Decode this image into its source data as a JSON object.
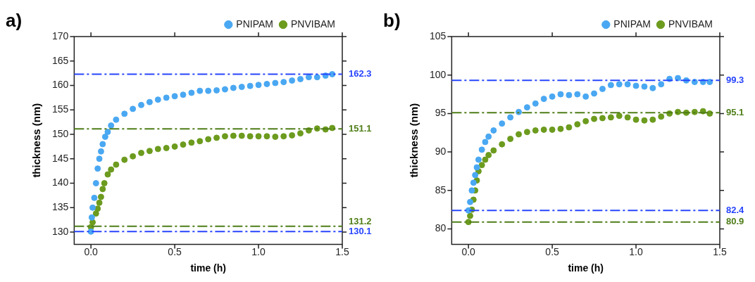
{
  "chart_data": [
    {
      "type": "scatter",
      "xlabel": "time (h)",
      "ylabel": "thickness (nm)",
      "annotations": [
        "a)"
      ],
      "xlim": [
        -0.1,
        1.5
      ],
      "ylim": [
        127.5,
        170
      ],
      "xticks": [
        {
          "value": 0,
          "label": "0.0"
        },
        {
          "value": 0.5,
          "label": "0.5"
        },
        {
          "value": 1,
          "label": "1.0"
        },
        {
          "value": 1.5,
          "label": "1.5"
        }
      ],
      "yticks": [
        130,
        135,
        140,
        145,
        150,
        155,
        160,
        165,
        170
      ],
      "grid": false,
      "legend": "top right",
      "marker": "circle",
      "series": [
        {
          "name": "PNIPAM",
          "color": "#4aa8f2",
          "x": [
            0,
            0.005,
            0.01,
            0.02,
            0.03,
            0.04,
            0.05,
            0.06,
            0.07,
            0.085,
            0.1,
            0.12,
            0.15,
            0.2,
            0.25,
            0.3,
            0.35,
            0.4,
            0.45,
            0.5,
            0.55,
            0.6,
            0.65,
            0.7,
            0.75,
            0.8,
            0.85,
            0.9,
            0.95,
            1.0,
            1.05,
            1.1,
            1.15,
            1.2,
            1.25,
            1.3,
            1.35,
            1.4,
            1.44
          ],
          "values": [
            130.1,
            133,
            135,
            137,
            140,
            143,
            145,
            146.5,
            148,
            149.5,
            150.5,
            151.8,
            153,
            154.2,
            155.2,
            156,
            156.6,
            157.1,
            157.5,
            157.8,
            158.1,
            158.5,
            158.9,
            158.9,
            159,
            159.2,
            159.5,
            159.7,
            159.9,
            160.1,
            160.3,
            160.5,
            160.7,
            161,
            161.3,
            161.7,
            161.7,
            162,
            162.3
          ]
        },
        {
          "name": "PNVIBAM",
          "color": "#6c9b1e",
          "x": [
            0,
            0.01,
            0.02,
            0.03,
            0.04,
            0.05,
            0.06,
            0.07,
            0.08,
            0.1,
            0.12,
            0.15,
            0.2,
            0.25,
            0.3,
            0.35,
            0.4,
            0.45,
            0.5,
            0.55,
            0.6,
            0.65,
            0.7,
            0.75,
            0.8,
            0.85,
            0.9,
            0.95,
            1.0,
            1.05,
            1.1,
            1.15,
            1.2,
            1.25,
            1.3,
            1.35,
            1.4,
            1.44
          ],
          "values": [
            131,
            132,
            null,
            133.8,
            134.8,
            136,
            137.2,
            138.8,
            140,
            141.8,
            142.8,
            143.8,
            144.8,
            145.5,
            146.2,
            146.6,
            147,
            147.2,
            147.5,
            147.9,
            148.3,
            148.6,
            149,
            149.3,
            149.6,
            149.7,
            149.7,
            149.6,
            149.6,
            149.6,
            149.5,
            149.6,
            149.8,
            150.2,
            150.8,
            151.2,
            151,
            151.3
          ]
        }
      ],
      "ref_lines": [
        {
          "axis": "y",
          "value": 162.3,
          "label": "162.3",
          "color": "#2745ff",
          "line_style": "dashed"
        },
        {
          "axis": "y",
          "value": 151.1,
          "label": "151.1",
          "color": "#4e7d17",
          "line_style": "dashed"
        },
        {
          "axis": "y",
          "value": 131.2,
          "label": "131.2",
          "color": "#4e7d17",
          "line_style": "dashed"
        },
        {
          "axis": "y",
          "value": 130.1,
          "label": "130.1",
          "color": "#2745ff",
          "line_style": "dashed"
        }
      ]
    },
    {
      "type": "scatter",
      "xlabel": "time (h)",
      "ylabel": "thickness (nm)",
      "annotations": [
        "b)"
      ],
      "xlim": [
        -0.1,
        1.5
      ],
      "ylim": [
        78,
        105
      ],
      "xticks": [
        {
          "value": 0,
          "label": "0.0"
        },
        {
          "value": 0.5,
          "label": "0.5"
        },
        {
          "value": 1,
          "label": "1.0"
        },
        {
          "value": 1.5,
          "label": "1.5"
        }
      ],
      "yticks": [
        80,
        85,
        90,
        95,
        100,
        105
      ],
      "grid": false,
      "legend": "top right",
      "marker": "circle",
      "series": [
        {
          "name": "PNIPAM",
          "color": "#4aa8f2",
          "x": [
            0,
            0.01,
            0.02,
            0.03,
            0.04,
            0.05,
            0.06,
            0.08,
            0.1,
            0.12,
            0.15,
            0.2,
            0.25,
            0.3,
            0.35,
            0.4,
            0.45,
            0.5,
            0.55,
            0.6,
            0.65,
            0.7,
            0.75,
            0.8,
            0.85,
            0.9,
            0.95,
            1.0,
            1.05,
            1.1,
            1.15,
            1.2,
            1.25,
            1.3,
            1.35,
            1.4,
            1.44
          ],
          "values": [
            82.4,
            83.5,
            85,
            86,
            87,
            88,
            89,
            90.3,
            91.3,
            92,
            92.8,
            93.7,
            94.5,
            95.2,
            95.8,
            96.3,
            96.9,
            97.2,
            97.5,
            97.4,
            97.5,
            97.2,
            97.6,
            98.2,
            98.7,
            98.8,
            98.8,
            98.6,
            98.5,
            98.3,
            98.8,
            99.5,
            99.6,
            99.3,
            99.1,
            99.1,
            99.1
          ]
        },
        {
          "name": "PNVIBAM",
          "color": "#6c9b1e",
          "x": [
            0,
            0.01,
            0.02,
            0.03,
            0.04,
            0.05,
            0.06,
            0.08,
            0.1,
            0.12,
            0.15,
            0.2,
            0.25,
            0.3,
            0.35,
            0.4,
            0.45,
            0.5,
            0.55,
            0.6,
            0.65,
            0.7,
            0.75,
            0.8,
            0.85,
            0.9,
            0.95,
            1.0,
            1.05,
            1.1,
            1.15,
            1.2,
            1.25,
            1.3,
            1.35,
            1.4,
            1.44
          ],
          "values": [
            80.9,
            81.7,
            82.5,
            83.8,
            85,
            86.3,
            87.5,
            88.3,
            89,
            89.6,
            90.2,
            91,
            91.7,
            92.3,
            92.6,
            92.8,
            92.9,
            92.9,
            93,
            93.2,
            93.6,
            94,
            94.3,
            94.4,
            94.5,
            94.7,
            94.5,
            94.2,
            94.1,
            94.2,
            94.6,
            95,
            95.2,
            95.1,
            95.2,
            95.3,
            95
          ]
        }
      ],
      "ref_lines": [
        {
          "axis": "y",
          "value": 99.3,
          "label": "99.3",
          "color": "#2745ff",
          "line_style": "dashed"
        },
        {
          "axis": "y",
          "value": 95.1,
          "label": "95.1",
          "color": "#4e7d17",
          "line_style": "dashed"
        },
        {
          "axis": "y",
          "value": 82.4,
          "label": "82.4",
          "color": "#2745ff",
          "line_style": "dashed"
        },
        {
          "axis": "y",
          "value": 80.9,
          "label": "80.9",
          "color": "#4e7d17",
          "line_style": "dashed"
        }
      ]
    }
  ]
}
